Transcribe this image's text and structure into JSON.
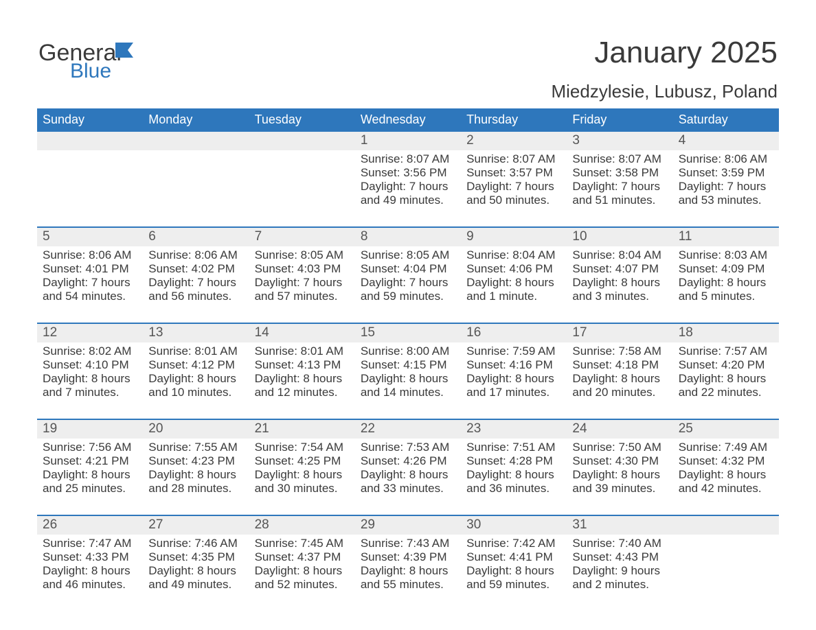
{
  "brand": {
    "word1": "General",
    "word2": "Blue"
  },
  "title": "January 2025",
  "location": "Miedzylesie, Lubusz, Poland",
  "colors": {
    "header_bg": "#2e77bc",
    "header_text": "#ffffff",
    "daynum_bg": "#eeeeee",
    "text": "#3a3a3a",
    "accent": "#2e77bc"
  },
  "day_headers": [
    "Sunday",
    "Monday",
    "Tuesday",
    "Wednesday",
    "Thursday",
    "Friday",
    "Saturday"
  ],
  "weeks": [
    [
      {
        "num": "",
        "sunrise": "",
        "sunset": "",
        "daylight": ""
      },
      {
        "num": "",
        "sunrise": "",
        "sunset": "",
        "daylight": ""
      },
      {
        "num": "",
        "sunrise": "",
        "sunset": "",
        "daylight": ""
      },
      {
        "num": "1",
        "sunrise": "Sunrise: 8:07 AM",
        "sunset": "Sunset: 3:56 PM",
        "daylight": "Daylight: 7 hours and 49 minutes."
      },
      {
        "num": "2",
        "sunrise": "Sunrise: 8:07 AM",
        "sunset": "Sunset: 3:57 PM",
        "daylight": "Daylight: 7 hours and 50 minutes."
      },
      {
        "num": "3",
        "sunrise": "Sunrise: 8:07 AM",
        "sunset": "Sunset: 3:58 PM",
        "daylight": "Daylight: 7 hours and 51 minutes."
      },
      {
        "num": "4",
        "sunrise": "Sunrise: 8:06 AM",
        "sunset": "Sunset: 3:59 PM",
        "daylight": "Daylight: 7 hours and 53 minutes."
      }
    ],
    [
      {
        "num": "5",
        "sunrise": "Sunrise: 8:06 AM",
        "sunset": "Sunset: 4:01 PM",
        "daylight": "Daylight: 7 hours and 54 minutes."
      },
      {
        "num": "6",
        "sunrise": "Sunrise: 8:06 AM",
        "sunset": "Sunset: 4:02 PM",
        "daylight": "Daylight: 7 hours and 56 minutes."
      },
      {
        "num": "7",
        "sunrise": "Sunrise: 8:05 AM",
        "sunset": "Sunset: 4:03 PM",
        "daylight": "Daylight: 7 hours and 57 minutes."
      },
      {
        "num": "8",
        "sunrise": "Sunrise: 8:05 AM",
        "sunset": "Sunset: 4:04 PM",
        "daylight": "Daylight: 7 hours and 59 minutes."
      },
      {
        "num": "9",
        "sunrise": "Sunrise: 8:04 AM",
        "sunset": "Sunset: 4:06 PM",
        "daylight": "Daylight: 8 hours and 1 minute."
      },
      {
        "num": "10",
        "sunrise": "Sunrise: 8:04 AM",
        "sunset": "Sunset: 4:07 PM",
        "daylight": "Daylight: 8 hours and 3 minutes."
      },
      {
        "num": "11",
        "sunrise": "Sunrise: 8:03 AM",
        "sunset": "Sunset: 4:09 PM",
        "daylight": "Daylight: 8 hours and 5 minutes."
      }
    ],
    [
      {
        "num": "12",
        "sunrise": "Sunrise: 8:02 AM",
        "sunset": "Sunset: 4:10 PM",
        "daylight": "Daylight: 8 hours and 7 minutes."
      },
      {
        "num": "13",
        "sunrise": "Sunrise: 8:01 AM",
        "sunset": "Sunset: 4:12 PM",
        "daylight": "Daylight: 8 hours and 10 minutes."
      },
      {
        "num": "14",
        "sunrise": "Sunrise: 8:01 AM",
        "sunset": "Sunset: 4:13 PM",
        "daylight": "Daylight: 8 hours and 12 minutes."
      },
      {
        "num": "15",
        "sunrise": "Sunrise: 8:00 AM",
        "sunset": "Sunset: 4:15 PM",
        "daylight": "Daylight: 8 hours and 14 minutes."
      },
      {
        "num": "16",
        "sunrise": "Sunrise: 7:59 AM",
        "sunset": "Sunset: 4:16 PM",
        "daylight": "Daylight: 8 hours and 17 minutes."
      },
      {
        "num": "17",
        "sunrise": "Sunrise: 7:58 AM",
        "sunset": "Sunset: 4:18 PM",
        "daylight": "Daylight: 8 hours and 20 minutes."
      },
      {
        "num": "18",
        "sunrise": "Sunrise: 7:57 AM",
        "sunset": "Sunset: 4:20 PM",
        "daylight": "Daylight: 8 hours and 22 minutes."
      }
    ],
    [
      {
        "num": "19",
        "sunrise": "Sunrise: 7:56 AM",
        "sunset": "Sunset: 4:21 PM",
        "daylight": "Daylight: 8 hours and 25 minutes."
      },
      {
        "num": "20",
        "sunrise": "Sunrise: 7:55 AM",
        "sunset": "Sunset: 4:23 PM",
        "daylight": "Daylight: 8 hours and 28 minutes."
      },
      {
        "num": "21",
        "sunrise": "Sunrise: 7:54 AM",
        "sunset": "Sunset: 4:25 PM",
        "daylight": "Daylight: 8 hours and 30 minutes."
      },
      {
        "num": "22",
        "sunrise": "Sunrise: 7:53 AM",
        "sunset": "Sunset: 4:26 PM",
        "daylight": "Daylight: 8 hours and 33 minutes."
      },
      {
        "num": "23",
        "sunrise": "Sunrise: 7:51 AM",
        "sunset": "Sunset: 4:28 PM",
        "daylight": "Daylight: 8 hours and 36 minutes."
      },
      {
        "num": "24",
        "sunrise": "Sunrise: 7:50 AM",
        "sunset": "Sunset: 4:30 PM",
        "daylight": "Daylight: 8 hours and 39 minutes."
      },
      {
        "num": "25",
        "sunrise": "Sunrise: 7:49 AM",
        "sunset": "Sunset: 4:32 PM",
        "daylight": "Daylight: 8 hours and 42 minutes."
      }
    ],
    [
      {
        "num": "26",
        "sunrise": "Sunrise: 7:47 AM",
        "sunset": "Sunset: 4:33 PM",
        "daylight": "Daylight: 8 hours and 46 minutes."
      },
      {
        "num": "27",
        "sunrise": "Sunrise: 7:46 AM",
        "sunset": "Sunset: 4:35 PM",
        "daylight": "Daylight: 8 hours and 49 minutes."
      },
      {
        "num": "28",
        "sunrise": "Sunrise: 7:45 AM",
        "sunset": "Sunset: 4:37 PM",
        "daylight": "Daylight: 8 hours and 52 minutes."
      },
      {
        "num": "29",
        "sunrise": "Sunrise: 7:43 AM",
        "sunset": "Sunset: 4:39 PM",
        "daylight": "Daylight: 8 hours and 55 minutes."
      },
      {
        "num": "30",
        "sunrise": "Sunrise: 7:42 AM",
        "sunset": "Sunset: 4:41 PM",
        "daylight": "Daylight: 8 hours and 59 minutes."
      },
      {
        "num": "31",
        "sunrise": "Sunrise: 7:40 AM",
        "sunset": "Sunset: 4:43 PM",
        "daylight": "Daylight: 9 hours and 2 minutes."
      },
      {
        "num": "",
        "sunrise": "",
        "sunset": "",
        "daylight": ""
      }
    ]
  ]
}
